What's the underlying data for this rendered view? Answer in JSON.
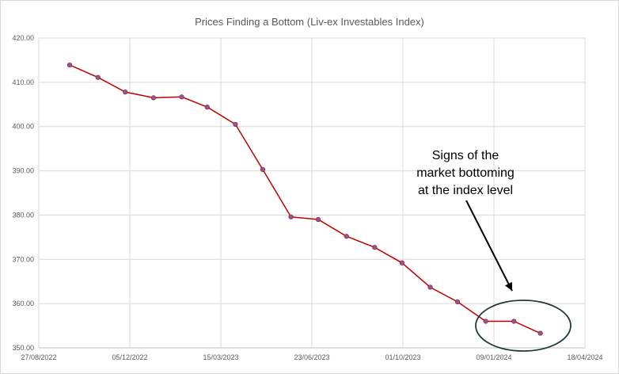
{
  "chart_data": {
    "type": "line",
    "title": "Prices Finding a Bottom (Liv-ex Investables Index)",
    "xlabel": "",
    "ylabel": "",
    "x_axis": {
      "type": "date",
      "range": [
        "27/08/2022",
        "18/04/2024"
      ],
      "tick_labels": [
        "27/08/2022",
        "05/12/2022",
        "15/03/2023",
        "23/06/2023",
        "01/10/2023",
        "09/01/2024",
        "18/04/2024"
      ]
    },
    "ylim": [
      350,
      420
    ],
    "y_tick_labels": [
      "350.00",
      "360.00",
      "370.00",
      "380.00",
      "390.00",
      "400.00",
      "410.00",
      "420.00"
    ],
    "grid": true,
    "legend": "none",
    "series": [
      {
        "color": "#c00000",
        "marker_color": "#7f5fa0",
        "x": [
          "30/09/2022",
          "31/10/2022",
          "30/11/2022",
          "31/12/2022",
          "31/01/2023",
          "28/02/2023",
          "31/03/2023",
          "30/04/2023",
          "31/05/2023",
          "30/06/2023",
          "31/07/2023",
          "31/08/2023",
          "30/09/2023",
          "31/10/2023",
          "30/11/2023",
          "31/12/2023",
          "31/01/2024",
          "29/02/2024"
        ],
        "y": [
          413.9,
          411.1,
          407.8,
          406.5,
          406.7,
          404.4,
          400.5,
          390.3,
          379.6,
          379.0,
          375.2,
          372.7,
          369.2,
          363.7,
          360.4,
          356.0,
          356.0,
          353.3
        ]
      }
    ],
    "annotations": [
      {
        "text_lines": [
          "Signs of the",
          "market bottoming",
          "at the index level"
        ],
        "shape": "arrow-to-ellipse",
        "ellipse_color": "#1f3a3d",
        "arrow_color": "#000000"
      }
    ]
  }
}
